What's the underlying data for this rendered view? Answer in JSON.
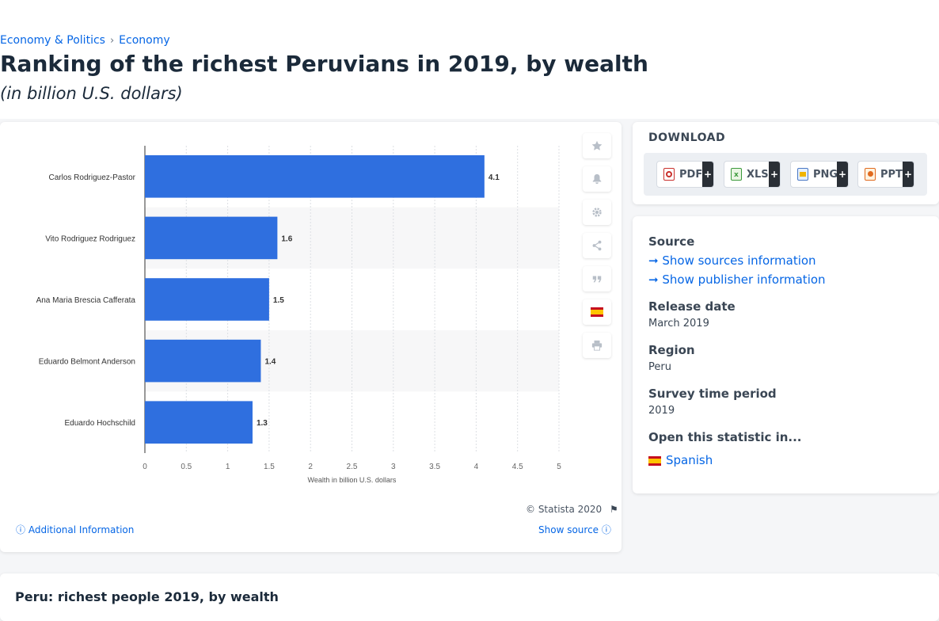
{
  "breadcrumb": {
    "item1": "Economy & Politics",
    "separator": "›",
    "item2": "Economy"
  },
  "page": {
    "title": "Ranking of the richest Peruvians in 2019, by wealth",
    "subtitle": "(in billion U.S. dollars)"
  },
  "chart_footer": {
    "copyright": "© Statista 2020",
    "additional_info": "Additional Information",
    "show_source": "Show source"
  },
  "toolbar": {
    "icons": [
      "star-icon",
      "bell-icon",
      "gear-icon",
      "share-icon",
      "quote-icon",
      "spain-flag-icon",
      "print-icon"
    ]
  },
  "download": {
    "title": "DOWNLOAD",
    "buttons": [
      {
        "label": "PDF",
        "plus": "+"
      },
      {
        "label": "XLS",
        "plus": "+"
      },
      {
        "label": "PNG",
        "plus": "+"
      },
      {
        "label": "PPT",
        "plus": "+"
      }
    ]
  },
  "info": {
    "source_heading": "Source",
    "sources_link": "Show sources information",
    "publisher_link": "Show publisher information",
    "release_heading": "Release date",
    "release_value": "March 2019",
    "region_heading": "Region",
    "region_value": "Peru",
    "survey_heading": "Survey time period",
    "survey_value": "2019",
    "open_heading": "Open this statistic in...",
    "open_link": "Spanish"
  },
  "bottom": {
    "title": "Peru: richest people 2019, by wealth"
  },
  "colors": {
    "bar": "#2f6fdf",
    "link": "#0666e5"
  },
  "chart_data": {
    "type": "bar",
    "orientation": "horizontal",
    "categories": [
      "Carlos Rodriguez-Pastor",
      "Vito Rodriguez Rodriguez",
      "Ana Maria Brescia Cafferata",
      "Eduardo Belmont Anderson",
      "Eduardo Hochschild"
    ],
    "values": [
      4.1,
      1.6,
      1.5,
      1.4,
      1.3
    ],
    "value_labels": [
      "4.1",
      "1.6",
      "1.5",
      "1.4",
      "1.3"
    ],
    "xlabel": "Wealth in billion U.S. dollars",
    "xlim": [
      0,
      5
    ],
    "xticks": [
      "0",
      "0.5",
      "1",
      "1.5",
      "2",
      "2.5",
      "3",
      "3.5",
      "4",
      "4.5",
      "5"
    ],
    "grid": true
  }
}
